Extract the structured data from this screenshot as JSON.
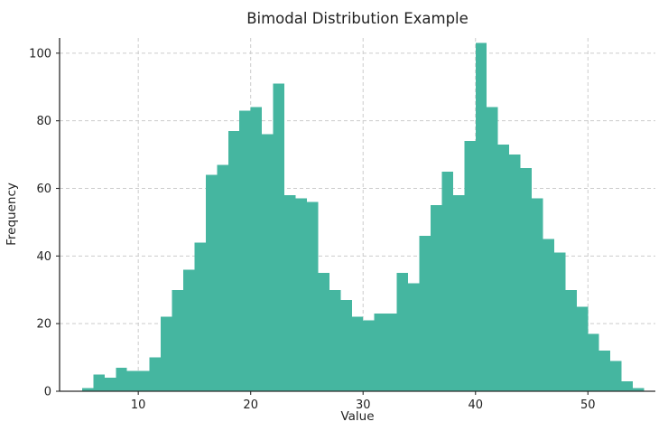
{
  "chart_data": {
    "type": "bar",
    "subtype": "histogram",
    "title": "Bimodal Distribution Example",
    "xlabel": "Value",
    "ylabel": "Frequency",
    "bin_start": 5,
    "bin_width": 1,
    "values": [
      1,
      5,
      4,
      7,
      6,
      6,
      10,
      22,
      30,
      36,
      44,
      64,
      67,
      77,
      83,
      84,
      76,
      91,
      58,
      57,
      56,
      35,
      30,
      27,
      22,
      21,
      23,
      23,
      35,
      32,
      46,
      55,
      65,
      58,
      74,
      103,
      84,
      73,
      70,
      66,
      57,
      45,
      41,
      30,
      25,
      17,
      12,
      9,
      3,
      1
    ],
    "x_ticks": [
      10,
      20,
      30,
      40,
      50
    ],
    "y_ticks": [
      0,
      20,
      40,
      60,
      80,
      100
    ],
    "xlim": [
      3,
      56
    ],
    "ylim": [
      0,
      104.5
    ],
    "grid": "dashed",
    "legend": "none",
    "bar_color": "#45b6a0",
    "grid_color": "#cccccc",
    "axis_color": "#2b2b2b",
    "text_color": "#222222",
    "background": "#ffffff"
  }
}
